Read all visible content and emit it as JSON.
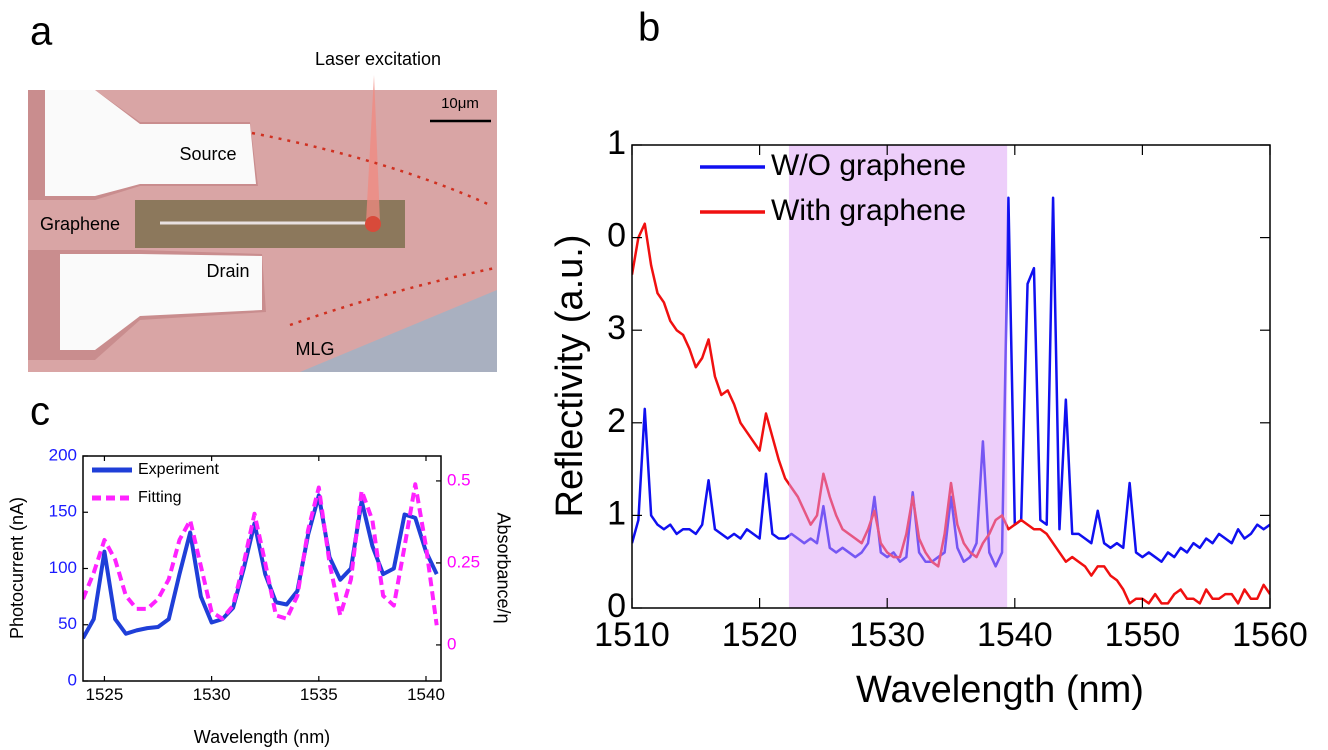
{
  "panel_labels": [
    "a",
    "b",
    "c"
  ],
  "micrograph": {
    "annotation": "Laser excitation",
    "scale_bar": "10μm",
    "labels": [
      "Source",
      "Graphene",
      "Drain",
      "MLG"
    ]
  },
  "chart_data": [
    {
      "type": "line",
      "x_label": "Wavelength (nm)",
      "y_label": "Reflectivity (a.u.)",
      "xlim": [
        1510,
        1560
      ],
      "xticks": [
        1510,
        1520,
        1530,
        1540,
        1550,
        1560
      ],
      "ylim": [
        0,
        5
      ],
      "yticks": [
        0,
        1,
        2,
        3,
        {
          "value": 4,
          "label": "0"
        },
        {
          "value": 5,
          "label": "1"
        }
      ],
      "highlight": [
        1522.3,
        1539.4
      ],
      "highlight_color": "#dc9ef5",
      "legend": "upper left",
      "x": [
        1510,
        1510.5,
        1511,
        1511.5,
        1512,
        1512.5,
        1513,
        1513.5,
        1514,
        1514.5,
        1515,
        1515.5,
        1516,
        1516.5,
        1517,
        1517.5,
        1518,
        1518.5,
        1519,
        1519.5,
        1520,
        1520.5,
        1521,
        1521.5,
        1522,
        1522.5,
        1523,
        1523.5,
        1524,
        1524.5,
        1525,
        1525.5,
        1526,
        1526.5,
        1527,
        1527.5,
        1528,
        1528.5,
        1529,
        1529.5,
        1530,
        1530.5,
        1531,
        1531.5,
        1532,
        1532.5,
        1533,
        1533.5,
        1534,
        1534.5,
        1535,
        1535.5,
        1536,
        1536.5,
        1537,
        1537.5,
        1538,
        1538.5,
        1539,
        1539.5,
        1540,
        1540.5,
        1541,
        1541.5,
        1542,
        1542.5,
        1543,
        1543.5,
        1544,
        1544.5,
        1545,
        1545.5,
        1546,
        1546.5,
        1547,
        1547.5,
        1548,
        1548.5,
        1549,
        1549.5,
        1550,
        1550.5,
        1551,
        1551.5,
        1552,
        1552.5,
        1553,
        1553.5,
        1554,
        1554.5,
        1555,
        1555.5,
        1556,
        1556.5,
        1557,
        1557.5,
        1558,
        1558.5,
        1559,
        1559.5,
        1560
      ],
      "series": [
        {
          "name": "W/O graphene",
          "color": "#1010f0",
          "values": [
            0.7,
            0.95,
            2.15,
            1.0,
            0.9,
            0.85,
            0.9,
            0.8,
            0.85,
            0.85,
            0.8,
            0.9,
            1.38,
            0.85,
            0.8,
            0.75,
            0.8,
            0.75,
            0.85,
            0.8,
            0.75,
            1.45,
            0.8,
            0.75,
            0.75,
            0.8,
            0.75,
            0.7,
            0.75,
            0.7,
            1.1,
            0.65,
            0.6,
            0.65,
            0.6,
            0.55,
            0.6,
            0.7,
            1.2,
            0.6,
            0.55,
            0.6,
            0.5,
            0.55,
            1.25,
            0.6,
            0.5,
            0.5,
            0.55,
            0.6,
            1.2,
            0.65,
            0.5,
            0.55,
            0.7,
            1.8,
            0.6,
            0.45,
            0.6,
            4.43,
            0.9,
            0.95,
            3.5,
            3.67,
            0.95,
            0.9,
            4.43,
            0.85,
            2.25,
            0.8,
            0.8,
            0.75,
            0.7,
            1.05,
            0.7,
            0.65,
            0.7,
            0.65,
            1.35,
            0.6,
            0.55,
            0.6,
            0.55,
            0.5,
            0.6,
            0.55,
            0.65,
            0.6,
            0.7,
            0.65,
            0.75,
            0.7,
            0.8,
            0.75,
            0.7,
            0.85,
            0.75,
            0.8,
            0.9,
            0.85,
            0.9
          ]
        },
        {
          "name": "With graphene",
          "color": "#f01010",
          "values": [
            3.6,
            4.0,
            4.15,
            3.7,
            3.4,
            3.3,
            3.1,
            3.0,
            2.95,
            2.8,
            2.6,
            2.7,
            2.9,
            2.5,
            2.3,
            2.35,
            2.2,
            2.0,
            1.9,
            1.8,
            1.7,
            2.1,
            1.85,
            1.6,
            1.4,
            1.3,
            1.2,
            1.05,
            0.9,
            1.0,
            1.45,
            1.2,
            1.0,
            0.85,
            0.8,
            0.75,
            0.7,
            0.85,
            1.05,
            0.7,
            0.6,
            0.55,
            0.55,
            0.8,
            1.2,
            0.75,
            0.6,
            0.5,
            0.45,
            0.8,
            1.35,
            0.9,
            0.7,
            0.6,
            0.55,
            0.7,
            0.8,
            0.95,
            1.0,
            0.85,
            0.9,
            0.95,
            0.9,
            0.85,
            0.85,
            0.8,
            0.7,
            0.6,
            0.5,
            0.55,
            0.5,
            0.45,
            0.35,
            0.45,
            0.45,
            0.35,
            0.3,
            0.2,
            0.05,
            0.1,
            0.1,
            0.05,
            0.15,
            0.05,
            0.05,
            0.15,
            0.2,
            0.1,
            0.1,
            0.05,
            0.2,
            0.1,
            0.1,
            0.15,
            0.15,
            0.05,
            0.2,
            0.1,
            0.1,
            0.25,
            0.15
          ]
        }
      ]
    },
    {
      "type": "line",
      "x_label": "Wavelength (nm)",
      "y_label": "Photocurrent (nA)",
      "y2_label": "Absorbance/η",
      "xlim": [
        1524,
        1540.7
      ],
      "xticks": [
        1525,
        1530,
        1535,
        1540
      ],
      "ylim": [
        0,
        200
      ],
      "yticks": [
        0,
        50,
        100,
        150,
        200
      ],
      "y_color": "#1a1aff",
      "y2lim": [
        -0.11,
        0.576
      ],
      "y2ticks": [
        0,
        0.25,
        0.5
      ],
      "y2_color": "#ff00ff",
      "legend": "upper left",
      "x": [
        1524,
        1524.5,
        1525,
        1525.5,
        1526,
        1526.5,
        1527,
        1527.5,
        1528,
        1528.5,
        1529,
        1529.5,
        1530,
        1530.5,
        1531,
        1531.5,
        1532,
        1532.5,
        1533,
        1533.5,
        1534,
        1534.5,
        1535,
        1535.5,
        1536,
        1536.5,
        1537,
        1537.5,
        1538,
        1538.5,
        1539,
        1539.5,
        1540,
        1540.5
      ],
      "series": [
        {
          "name": "Experiment",
          "color": "#1f3fd8",
          "values": [
            38,
            55,
            115,
            55,
            42,
            45,
            47,
            48,
            55,
            95,
            132,
            75,
            52,
            55,
            65,
            100,
            140,
            95,
            70,
            68,
            80,
            130,
            165,
            110,
            90,
            100,
            160,
            120,
            95,
            100,
            148,
            145,
            115,
            95
          ]
        },
        {
          "name": "Fitting",
          "color": "#ff22ff",
          "axis": "y2",
          "dashed": true,
          "values": [
            0.14,
            0.22,
            0.32,
            0.26,
            0.15,
            0.11,
            0.11,
            0.14,
            0.2,
            0.32,
            0.38,
            0.24,
            0.1,
            0.08,
            0.12,
            0.25,
            0.4,
            0.25,
            0.09,
            0.08,
            0.15,
            0.35,
            0.48,
            0.25,
            0.09,
            0.2,
            0.47,
            0.38,
            0.15,
            0.12,
            0.3,
            0.49,
            0.3,
            0.06
          ]
        }
      ]
    }
  ]
}
